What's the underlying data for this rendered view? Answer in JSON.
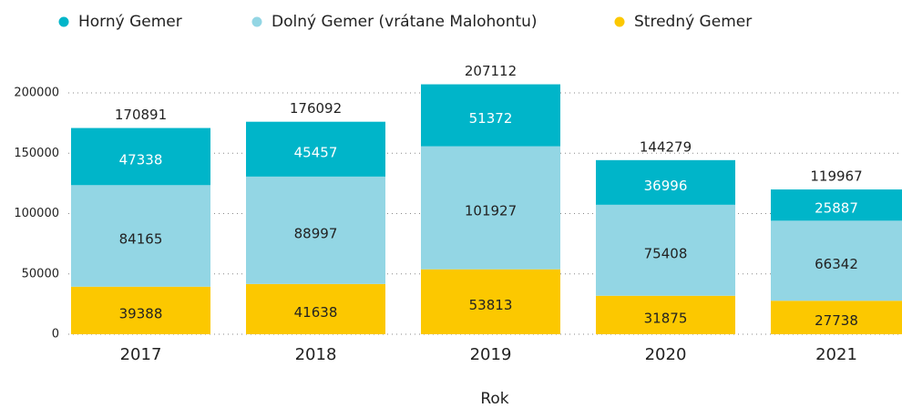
{
  "chart_data": {
    "type": "stacked_bar",
    "x_label": "Rok",
    "categories": [
      "2017",
      "2018",
      "2019",
      "2020",
      "2021"
    ],
    "series": [
      {
        "name": "Stredný Gemer",
        "color": "#fcc800",
        "label_color": "#222222",
        "values": [
          39388,
          41638,
          53813,
          31875,
          27738
        ]
      },
      {
        "name": "Dolný Gemer (vrátane Malohontu)",
        "color": "#93d6e4",
        "label_color": "#222222",
        "values": [
          84165,
          88997,
          101927,
          75408,
          66342
        ]
      },
      {
        "name": "Horný Gemer",
        "color": "#00b5c9",
        "label_color": "#ffffff",
        "values": [
          47338,
          45457,
          51372,
          36996,
          25887
        ]
      }
    ],
    "legend_order": [
      2,
      1,
      0
    ],
    "totals": [
      170891,
      176092,
      207112,
      144279,
      119967
    ],
    "ylim": [
      0,
      210000
    ],
    "yticks": [
      0,
      50000,
      100000,
      150000,
      200000
    ],
    "grid": true
  }
}
